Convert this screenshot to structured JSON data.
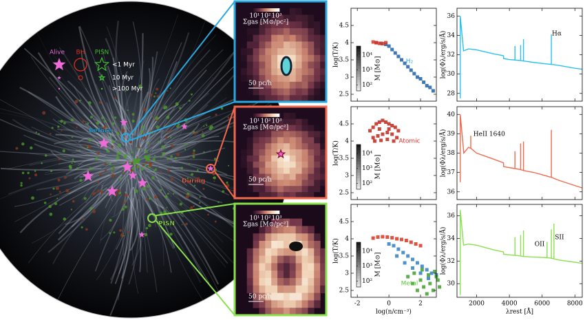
{
  "simulation": {
    "legend_headers": [
      "Alive",
      "BH",
      "PISN"
    ],
    "legend_rows": [
      "<1 Myr",
      "10 Myr",
      ">100 Myr"
    ],
    "labels": [
      "Before",
      "During",
      "PISN"
    ]
  },
  "zooms": [
    {
      "colorbar_ticks": [
        "10¹",
        "10²",
        "10³"
      ],
      "colorbar_label": "Σgas [M⊙/pc²]",
      "scale": "50 pc/h"
    },
    {
      "colorbar_ticks": [
        "10¹",
        "10²",
        "10³"
      ],
      "colorbar_label": "Σgas [M⊙/pc²]",
      "scale": "50 pc/h"
    },
    {
      "colorbar_ticks": [
        "10¹",
        "10²",
        "10³"
      ],
      "colorbar_label": "Σgas [M⊙/pc²]",
      "scale": "50 pc/h"
    }
  ],
  "chart_data": [
    {
      "type": "scatter",
      "ylabel": "log(T/K)",
      "label": "H₂",
      "label_color": "#29a9e0",
      "xlim": [
        -2.4,
        3.0
      ],
      "xticks": [
        -2,
        0,
        2
      ],
      "ylim": [
        2.3,
        5.0
      ],
      "yticks": [
        2.5,
        3.0,
        3.5,
        4.0,
        4.5
      ],
      "colorbar": {
        "label": "M [M⊙]",
        "lim": [
          40,
          40000
        ],
        "ticks": [
          {
            "value": 100,
            "label": "10²"
          },
          {
            "value": 1000,
            "label": "10³"
          },
          {
            "value": 10000,
            "label": "10⁴"
          }
        ]
      },
      "series": [
        {
          "color": "#1f5fa8",
          "x": [
            -0.8,
            -0.5,
            -0.2,
            0.0,
            0.2,
            0.4,
            0.6,
            0.8,
            1.0,
            1.2,
            1.4,
            1.6,
            1.8,
            2.0,
            2.2,
            2.4,
            2.6,
            2.8
          ],
          "values": [
            4.0,
            3.98,
            3.95,
            3.9,
            3.8,
            3.7,
            3.6,
            3.5,
            3.4,
            3.3,
            3.2,
            3.1,
            3.0,
            2.95,
            2.85,
            2.75,
            2.7,
            2.6
          ]
        },
        {
          "color": "#d9321f",
          "x": [
            -1.0,
            -0.8,
            -0.6,
            -0.4,
            -0.2
          ],
          "values": [
            4.02,
            4.0,
            3.98,
            3.97,
            4.0
          ]
        }
      ]
    },
    {
      "type": "scatter",
      "ylabel": "log(T/K)",
      "label": "Atomic",
      "label_color": "#e8332a",
      "xlim": [
        -2.4,
        3.0
      ],
      "xticks": [
        -2,
        0,
        2
      ],
      "ylim": [
        2.3,
        5.0
      ],
      "yticks": [
        2.5,
        3.0,
        3.5,
        4.0,
        4.5
      ],
      "colorbar": {
        "label": "M [M⊙]",
        "lim": [
          40,
          40000
        ],
        "ticks": [
          {
            "value": 100,
            "label": "10²"
          },
          {
            "value": 1000,
            "label": "10³"
          },
          {
            "value": 10000,
            "label": "10⁴"
          }
        ]
      },
      "series": [
        {
          "color": "#c0271c",
          "x": [
            -1.2,
            -1.0,
            -0.8,
            -0.6,
            -0.4,
            -0.2,
            0.0,
            0.2,
            0.4,
            0.6,
            -1.0,
            -0.7,
            -0.4,
            -0.1,
            0.2,
            0.5,
            -0.9,
            -0.5,
            -0.1,
            0.3,
            -0.6,
            0.0
          ],
          "values": [
            4.3,
            4.4,
            4.5,
            4.55,
            4.6,
            4.55,
            4.5,
            4.45,
            4.4,
            4.3,
            4.1,
            4.15,
            4.2,
            4.25,
            4.2,
            4.1,
            4.0,
            4.02,
            4.05,
            4.0,
            4.35,
            4.35
          ]
        }
      ]
    },
    {
      "type": "scatter",
      "ylabel": "log(T/K)",
      "xlabel": "log(n/cm⁻³)",
      "label": "Metal",
      "label_color": "#5ac83a",
      "xlim": [
        -2.4,
        3.0
      ],
      "xticks": [
        -2,
        0,
        2
      ],
      "ylim": [
        2.3,
        5.0
      ],
      "yticks": [
        2.5,
        3.0,
        3.5,
        4.0,
        4.5
      ],
      "colorbar": {
        "label": "M [M⊙]",
        "lim": [
          40,
          40000
        ],
        "ticks": [
          {
            "value": 100,
            "label": "10²"
          },
          {
            "value": 1000,
            "label": "10³"
          },
          {
            "value": 10000,
            "label": "10⁴"
          }
        ]
      },
      "series": [
        {
          "color": "#d9321f",
          "x": [
            -1.0,
            -0.7,
            -0.4,
            -0.1,
            0.2,
            0.5,
            0.8,
            1.1,
            1.4,
            1.7,
            2.0
          ],
          "values": [
            4.02,
            4.05,
            4.06,
            4.05,
            4.03,
            4.0,
            3.98,
            3.95,
            3.9,
            3.85,
            3.8
          ]
        },
        {
          "color": "#2f7ec4",
          "x": [
            0.0,
            0.3,
            0.6,
            0.9,
            1.2,
            1.5,
            1.8,
            2.1,
            2.4,
            2.7,
            3.0,
            0.5,
            1.0,
            1.5,
            2.0,
            2.5
          ],
          "values": [
            3.85,
            3.8,
            3.7,
            3.6,
            3.5,
            3.4,
            3.3,
            3.2,
            3.1,
            3.0,
            2.95,
            3.5,
            3.3,
            3.15,
            3.0,
            2.85
          ]
        },
        {
          "color": "#3fa02a",
          "x": [
            1.2,
            1.5,
            1.8,
            2.0,
            2.2,
            2.4,
            2.6,
            2.8,
            3.0,
            3.2,
            1.6,
            2.1,
            2.5,
            2.9,
            3.1
          ],
          "values": [
            2.9,
            2.7,
            2.5,
            2.8,
            2.6,
            2.4,
            2.7,
            2.5,
            2.9,
            2.6,
            3.0,
            3.1,
            2.95,
            3.05,
            2.8
          ]
        }
      ]
    },
    {
      "type": "line",
      "ylabel": "log(Φλ/erg/s/Å)",
      "label": "Hα",
      "color": "#29c0ef",
      "xlim": [
        800,
        8450
      ],
      "xticks": [
        2000,
        4000,
        6000,
        8000
      ],
      "ylim": [
        27.2,
        36.8
      ],
      "yticks": [
        28,
        30,
        32,
        34,
        36
      ],
      "x": [
        1000,
        1000,
        1200,
        1500,
        2000,
        3000,
        3640,
        3650,
        4000,
        4340,
        4340,
        4340,
        4686,
        4686,
        4686,
        4861,
        4861,
        4861,
        5500,
        6000,
        6563,
        6563,
        6563,
        7000,
        8000,
        8450
      ],
      "values": [
        27.5,
        36.0,
        32.4,
        32.6,
        32.5,
        32.1,
        31.9,
        31.6,
        31.5,
        31.45,
        32.9,
        31.45,
        31.4,
        33.0,
        31.4,
        31.35,
        33.6,
        31.35,
        31.2,
        31.1,
        31.0,
        34.1,
        31.0,
        30.9,
        30.6,
        30.5
      ]
    },
    {
      "type": "line",
      "ylabel": "log(Φλ/erg/s/Å)",
      "label": "HeII 1640",
      "color": "#f0694f",
      "xlim": [
        800,
        8450
      ],
      "xticks": [
        2000,
        4000,
        6000,
        8000
      ],
      "ylim": [
        35.6,
        40.4
      ],
      "yticks": [
        36,
        37,
        38,
        39,
        40
      ],
      "x": [
        1000,
        1000,
        1216,
        1500,
        1640,
        1640,
        1640,
        2000,
        3000,
        3640,
        3650,
        4340,
        4340,
        4340,
        4686,
        4686,
        4686,
        4861,
        4861,
        4861,
        5500,
        6563,
        6563,
        6563,
        7000,
        8450
      ],
      "values": [
        36.5,
        40.0,
        38.0,
        38.3,
        38.25,
        38.9,
        38.25,
        38.0,
        37.7,
        37.5,
        37.3,
        37.2,
        38.1,
        37.2,
        37.15,
        38.5,
        37.15,
        37.1,
        38.6,
        37.1,
        37.0,
        36.75,
        39.2,
        36.75,
        36.6,
        36.2
      ]
    },
    {
      "type": "line",
      "ylabel": "log(Φλ/erg/s/Å)",
      "xlabel": "λrest [Å]",
      "labels": [
        "OII",
        "SII"
      ],
      "color": "#8be04e",
      "xlim": [
        800,
        8450
      ],
      "xticks": [
        2000,
        4000,
        6000,
        8000
      ],
      "ylim": [
        28.8,
        37.0
      ],
      "yticks": [
        30,
        32,
        34,
        36
      ],
      "x": [
        1000,
        1000,
        1200,
        1500,
        2000,
        3000,
        3640,
        3650,
        4340,
        4340,
        4340,
        4686,
        4686,
        4686,
        4861,
        4861,
        4861,
        5500,
        6300,
        6300,
        6300,
        6563,
        6563,
        6563,
        6720,
        6720,
        6720,
        7000,
        8450
      ],
      "values": [
        29.0,
        36.5,
        33.4,
        33.5,
        33.4,
        33.0,
        32.8,
        32.6,
        32.5,
        34.1,
        32.5,
        32.45,
        34.3,
        32.45,
        32.4,
        34.7,
        32.4,
        32.35,
        32.3,
        33.7,
        32.3,
        32.25,
        34.8,
        32.25,
        32.2,
        35.3,
        32.2,
        32.1,
        31.8
      ]
    }
  ]
}
